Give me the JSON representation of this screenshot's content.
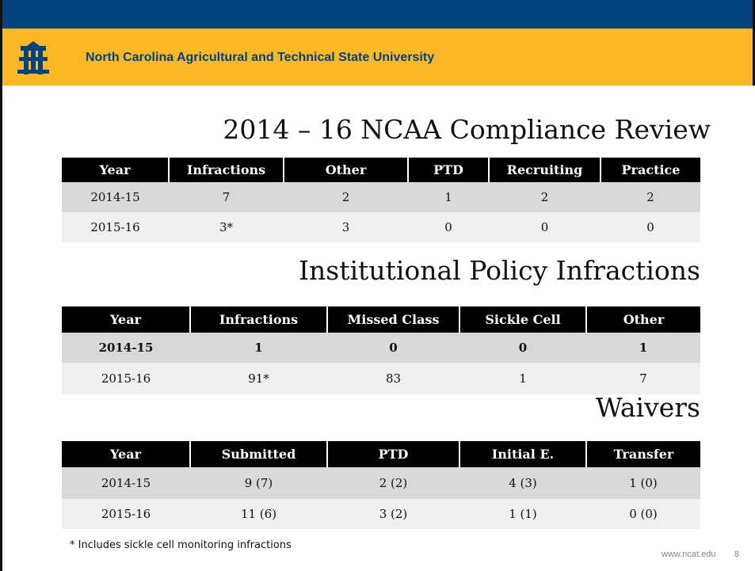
{
  "header": {
    "title": "North Carolina Agricultural and Technical State University"
  },
  "sections": [
    {
      "title": "2014 – 16 NCAA Compliance Review",
      "columns": [
        "Year",
        "Infractions",
        "Other",
        "PTD",
        "Recruiting",
        "Practice"
      ],
      "rows": [
        [
          "2014-15",
          "7",
          "2",
          "1",
          "2",
          "2"
        ],
        [
          "2015-16",
          "3*",
          "3",
          "0",
          "0",
          "0"
        ]
      ]
    },
    {
      "title": "Institutional Policy Infractions",
      "columns": [
        "Year",
        "Infractions",
        "Missed Class",
        "Sickle Cell",
        "Other"
      ],
      "rows": [
        [
          "2014-15",
          "1",
          "0",
          "0",
          "1"
        ],
        [
          "2015-16",
          "91*",
          "83",
          "1",
          "7"
        ]
      ]
    },
    {
      "title": "Waivers",
      "columns": [
        "Year",
        "Submitted",
        "PTD",
        "Initial E.",
        "Transfer"
      ],
      "rows": [
        [
          "2014-15",
          "9 (7)",
          "2 (2)",
          "4 (3)",
          "1 (0)"
        ],
        [
          "2015-16",
          "11 (6)",
          "3 (2)",
          "1 (1)",
          "0 (0)"
        ]
      ]
    }
  ],
  "footnote": "* Includes sickle cell monitoring infractions",
  "footer": {
    "url": "www.ncat.edu",
    "page": "8"
  }
}
